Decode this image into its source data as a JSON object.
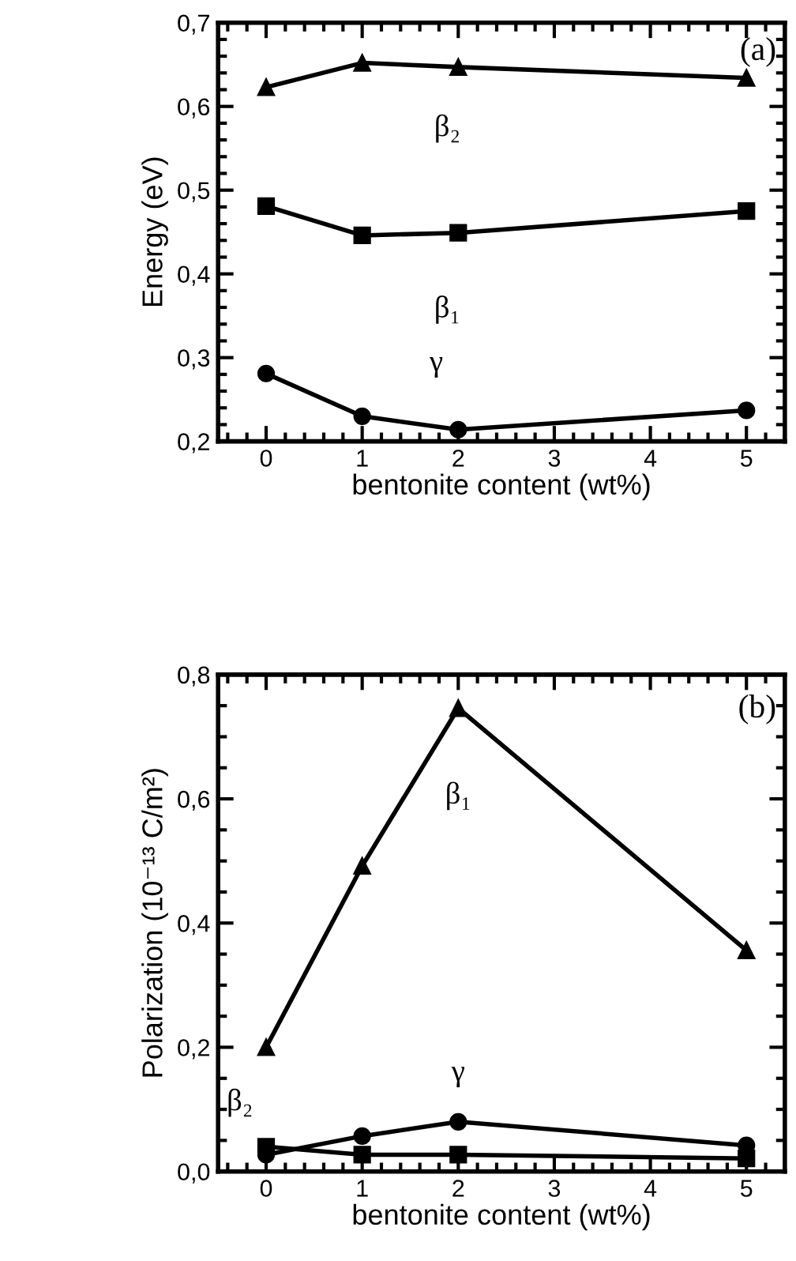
{
  "chart_data": [
    {
      "type": "line",
      "xlabel": "bentonite content (wt%)",
      "ylabel": "Energy (eV)",
      "x": [
        0,
        1,
        2,
        5
      ],
      "line_style": "solid",
      "series": [
        {
          "name": "β₂",
          "color": "#000000",
          "marker": "triangle",
          "values": [
            0.623,
            0.652,
            0.647,
            0.634
          ]
        },
        {
          "name": "β₁",
          "color": "#000000",
          "marker": "square",
          "values": [
            0.481,
            0.446,
            0.449,
            0.475
          ]
        },
        {
          "name": "γ",
          "color": "#000000",
          "marker": "circle",
          "values": [
            0.281,
            0.23,
            0.214,
            0.237
          ]
        }
      ],
      "xlim": [
        -0.5,
        5.4
      ],
      "xticks": [
        0,
        1,
        2,
        3,
        4,
        5
      ],
      "ylim": [
        0.2,
        0.7
      ],
      "yticks": [
        {
          "value": 0.2,
          "label": "0,2"
        },
        {
          "value": 0.3,
          "label": "0,3"
        },
        {
          "value": 0.4,
          "label": "0,4"
        },
        {
          "value": 0.5,
          "label": "0,5"
        },
        {
          "value": 0.6,
          "label": "0,6"
        },
        {
          "value": 0.7,
          "label": "0,7"
        }
      ],
      "grid": false,
      "annotations": [
        "(a)"
      ]
    },
    {
      "type": "line",
      "xlabel": "bentonite content (wt%)",
      "ylabel": "Polarization (10⁻¹³ C/m²)",
      "x": [
        0,
        1,
        2,
        5
      ],
      "line_style": "solid",
      "series": [
        {
          "name": "β₁",
          "color": "#000000",
          "marker": "triangle",
          "values": [
            0.2,
            0.492,
            0.746,
            0.356
          ]
        },
        {
          "name": "β₂",
          "color": "#000000",
          "marker": "square",
          "values": [
            0.04,
            0.027,
            0.027,
            0.021
          ]
        },
        {
          "name": "γ",
          "color": "#000000",
          "marker": "circle",
          "values": [
            0.027,
            0.057,
            0.08,
            0.042
          ]
        }
      ],
      "xlim": [
        -0.5,
        5.4
      ],
      "xticks": [
        0,
        1,
        2,
        3,
        4,
        5
      ],
      "ylim": [
        0.0,
        0.8
      ],
      "yticks": [
        {
          "value": 0.0,
          "label": "0,0"
        },
        {
          "value": 0.2,
          "label": "0,2"
        },
        {
          "value": 0.4,
          "label": "0,4"
        },
        {
          "value": 0.6,
          "label": "0,6"
        },
        {
          "value": 0.8,
          "label": "0,8"
        }
      ],
      "grid": false,
      "annotations": [
        "(b)"
      ]
    }
  ]
}
